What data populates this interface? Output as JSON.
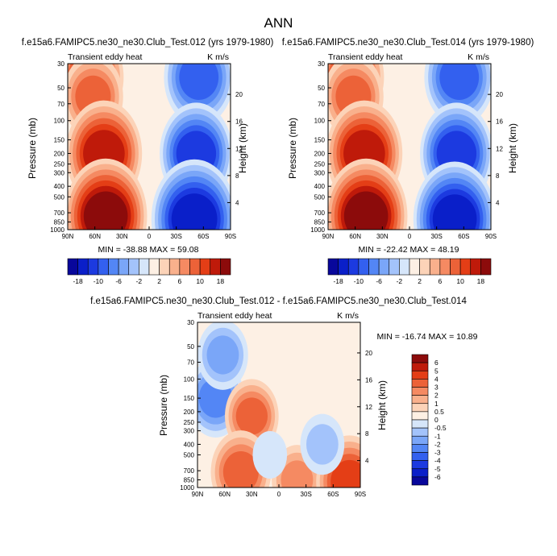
{
  "figure_title": "ANN",
  "colors": {
    "div_blue_dark": "#08079b",
    "div_blue": "#1c3ae0",
    "div_blue_light": "#d6e6fa",
    "div_neutral": "#fdf0e4",
    "div_red": "#ec4a1f",
    "div_red_dark": "#8c0b0b"
  },
  "chart_data": [
    {
      "type": "heatmap",
      "title": "f.e15a6.FAMIPC5.ne30_ne30.Club_Test.012 (yrs 1979-1980)",
      "subtitle_left": "Transient eddy heat",
      "subtitle_right": "K m/s",
      "ylabel": "Pressure (mb)",
      "ylabel_right": "Height (km)",
      "x_ticks": [
        "90N",
        "60N",
        "30N",
        "0",
        "30S",
        "60S",
        "90S"
      ],
      "y_ticks": [
        "30",
        "50",
        "70",
        "100",
        "150",
        "200",
        "250",
        "300",
        "400",
        "500",
        "700",
        "850",
        "1000"
      ],
      "y_right_ticks": [
        "20",
        "16",
        "12",
        "8",
        "4"
      ],
      "min_max_text": "MIN = -38.88  MAX =  59.08",
      "colorbar": {
        "orientation": "horizontal",
        "labels": [
          "-18",
          "-10",
          "-6",
          "-2",
          "2",
          "6",
          "10",
          "18"
        ],
        "n_boxes": 16
      },
      "features": [
        {
          "lat": 65,
          "p": 40,
          "sign": 1,
          "level": 0.7
        },
        {
          "lat": 62,
          "p": 60,
          "sign": 1,
          "level": 0.6
        },
        {
          "lat": 50,
          "p": 200,
          "sign": 1,
          "level": 0.85
        },
        {
          "lat": 48,
          "p": 750,
          "sign": 1,
          "level": 0.95
        },
        {
          "lat": -55,
          "p": 40,
          "sign": -1,
          "level": 0.75
        },
        {
          "lat": -52,
          "p": 200,
          "sign": -1,
          "level": 0.8
        },
        {
          "lat": -50,
          "p": 800,
          "sign": -1,
          "level": 1.0
        }
      ]
    },
    {
      "type": "heatmap",
      "title": "f.e15a6.FAMIPC5.ne30_ne30.Club_Test.014 (yrs 1979-1980)",
      "subtitle_left": "Transient eddy heat",
      "subtitle_right": "K m/s",
      "ylabel": "Pressure (mb)",
      "ylabel_right": "Height (km)",
      "x_ticks": [
        "90N",
        "60N",
        "30N",
        "0",
        "30S",
        "60S",
        "90S"
      ],
      "y_ticks": [
        "30",
        "50",
        "70",
        "100",
        "150",
        "200",
        "250",
        "300",
        "400",
        "500",
        "700",
        "850",
        "1000"
      ],
      "y_right_ticks": [
        "20",
        "16",
        "12",
        "8",
        "4"
      ],
      "min_max_text": "MIN = -22.42  MAX =  48.19",
      "colorbar": {
        "orientation": "horizontal",
        "labels": [
          "-18",
          "-10",
          "-6",
          "-2",
          "2",
          "6",
          "10",
          "18"
        ],
        "n_boxes": 16
      },
      "features": [
        {
          "lat": 65,
          "p": 40,
          "sign": 1,
          "level": 0.7
        },
        {
          "lat": 62,
          "p": 60,
          "sign": 1,
          "level": 0.6
        },
        {
          "lat": 50,
          "p": 200,
          "sign": 1,
          "level": 0.85
        },
        {
          "lat": 48,
          "p": 750,
          "sign": 1,
          "level": 0.95
        },
        {
          "lat": -55,
          "p": 40,
          "sign": -1,
          "level": 0.75
        },
        {
          "lat": -52,
          "p": 200,
          "sign": -1,
          "level": 0.8
        },
        {
          "lat": -50,
          "p": 800,
          "sign": -1,
          "level": 0.95
        }
      ]
    },
    {
      "type": "heatmap",
      "title": "f.e15a6.FAMIPC5.ne30_ne30.Club_Test.012 - f.e15a6.FAMIPC5.ne30_ne30.Club_Test.014",
      "subtitle_left": "Transient eddy heat",
      "subtitle_right": "K m/s",
      "ylabel": "Pressure (mb)",
      "ylabel_right": "Height (km)",
      "x_ticks": [
        "90N",
        "60N",
        "30N",
        "0",
        "30S",
        "60S",
        "90S"
      ],
      "y_ticks": [
        "30",
        "50",
        "70",
        "100",
        "150",
        "200",
        "250",
        "300",
        "400",
        "500",
        "700",
        "850",
        "1000"
      ],
      "y_right_ticks": [
        "20",
        "16",
        "12",
        "8",
        "4"
      ],
      "min_max_text": "MIN = -16.74  MAX =  10.89",
      "colorbar": {
        "orientation": "vertical",
        "labels": [
          "6",
          "5",
          "4",
          "3",
          "2",
          "1",
          "0.5",
          "0",
          "-0.5",
          "-1",
          "-2",
          "-3",
          "-4",
          "-5",
          "-6"
        ],
        "n_boxes": 16
      },
      "features": [
        {
          "lat": 70,
          "p": 150,
          "sign": -1,
          "level": 0.55
        },
        {
          "lat": 62,
          "p": 60,
          "sign": -1,
          "level": 0.45
        },
        {
          "lat": 30,
          "p": 220,
          "sign": 1,
          "level": 0.5
        },
        {
          "lat": 42,
          "p": 720,
          "sign": 1,
          "level": 0.6
        },
        {
          "lat": -20,
          "p": 850,
          "sign": 1,
          "level": 0.45
        },
        {
          "lat": -78,
          "p": 880,
          "sign": 1,
          "level": 0.7
        },
        {
          "lat": -48,
          "p": 400,
          "sign": -1,
          "level": 0.35
        },
        {
          "lat": 10,
          "p": 500,
          "sign": -1,
          "level": 0.2
        }
      ]
    }
  ]
}
